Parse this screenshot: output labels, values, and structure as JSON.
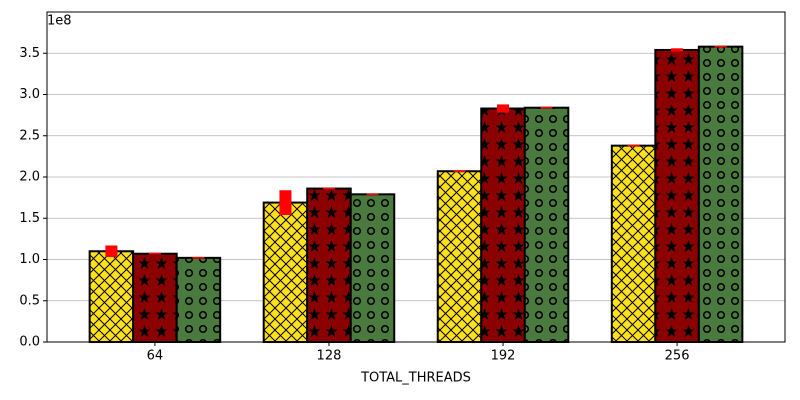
{
  "chart_data": {
    "type": "bar",
    "x_label": "TOTAL_THREADS",
    "y_offset_label": "1e8",
    "categories": [
      "64",
      "128",
      "192",
      "256"
    ],
    "series": [
      {
        "color": "#ffe119",
        "hatch": "crosshatch",
        "values": [
          110000000,
          169000000,
          207000000,
          238000000
        ],
        "errors": [
          7000000,
          15000000,
          1000000,
          1000000
        ]
      },
      {
        "color": "#8b0000",
        "hatch": "star",
        "values": [
          107000000,
          186000000,
          283000000,
          354000000
        ],
        "errors": [
          1000000,
          1000000,
          5000000,
          2000000
        ]
      },
      {
        "color": "#4a7a3e",
        "hatch": "circle",
        "values": [
          102000000,
          179000000,
          284000000,
          358000000
        ],
        "errors": [
          1000000,
          1000000,
          1000000,
          1000000
        ]
      }
    ],
    "error_color": "#ff0000",
    "ylim": [
      0,
      400000000
    ],
    "yticks": [
      {
        "value": 0,
        "label": "0.0"
      },
      {
        "value": 50000000,
        "label": "0.5"
      },
      {
        "value": 100000000,
        "label": "1.0"
      },
      {
        "value": 150000000,
        "label": "1.5"
      },
      {
        "value": 200000000,
        "label": "2.0"
      },
      {
        "value": 250000000,
        "label": "2.5"
      },
      {
        "value": 300000000,
        "label": "3.0"
      },
      {
        "value": 350000000,
        "label": "3.5"
      }
    ],
    "grid": true
  }
}
